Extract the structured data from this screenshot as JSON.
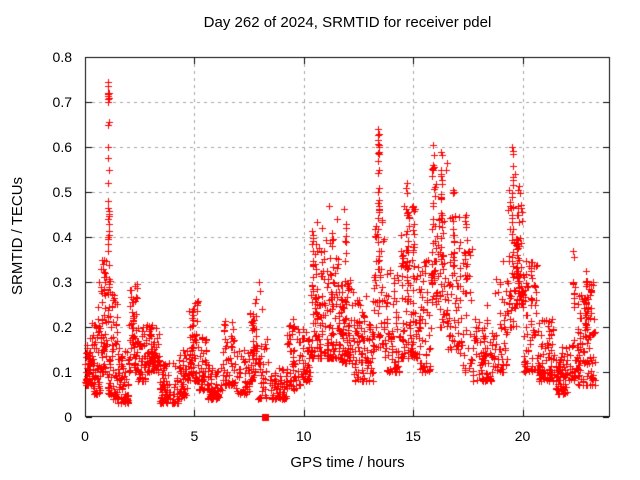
{
  "chart_data": {
    "type": "scatter",
    "title": "Day 262 of 2024, SRMTID for receiver pdel",
    "xlabel": "GPS time / hours",
    "ylabel": "SRMTID / TECUs",
    "xlim": [
      0,
      24
    ],
    "ylim": [
      0,
      0.8
    ],
    "xticks": [
      {
        "v": 0,
        "label": "0"
      },
      {
        "v": 5,
        "label": "5"
      },
      {
        "v": 10,
        "label": "10"
      },
      {
        "v": 15,
        "label": "15"
      },
      {
        "v": 20,
        "label": "20"
      }
    ],
    "yticks": [
      {
        "v": 0.0,
        "label": "0"
      },
      {
        "v": 0.1,
        "label": "0.1"
      },
      {
        "v": 0.2,
        "label": "0.2"
      },
      {
        "v": 0.3,
        "label": "0.3"
      },
      {
        "v": 0.4,
        "label": "0.4"
      },
      {
        "v": 0.5,
        "label": "0.5"
      },
      {
        "v": 0.6,
        "label": "0.6"
      },
      {
        "v": 0.7,
        "label": "0.7"
      },
      {
        "v": 0.8,
        "label": "0.8"
      }
    ],
    "grid": "dashed",
    "legend": "none",
    "marker": {
      "shape": "plus",
      "color": "#ff0000",
      "size": 7
    },
    "grid_color": "#a6a6a6",
    "axis_color": "#000000",
    "seed": 1337,
    "bands_format": [
      "t_start_h",
      "t_end_h",
      "tecu_min",
      "tecu_max",
      "n_points"
    ],
    "bands": [
      [
        0.0,
        0.4,
        0.07,
        0.19,
        60
      ],
      [
        0.3,
        0.7,
        0.05,
        0.25,
        50
      ],
      [
        0.7,
        1.0,
        0.1,
        0.35,
        55
      ],
      [
        1.0,
        1.2,
        0.05,
        0.3,
        25
      ],
      [
        1.2,
        1.5,
        0.04,
        0.28,
        45
      ],
      [
        1.5,
        2.0,
        0.03,
        0.16,
        60
      ],
      [
        2.0,
        2.4,
        0.1,
        0.31,
        50
      ],
      [
        2.4,
        2.8,
        0.08,
        0.2,
        45
      ],
      [
        2.8,
        3.4,
        0.1,
        0.21,
        70
      ],
      [
        3.4,
        4.3,
        0.03,
        0.12,
        80
      ],
      [
        4.3,
        4.7,
        0.04,
        0.15,
        45
      ],
      [
        4.7,
        5.2,
        0.08,
        0.26,
        60
      ],
      [
        5.2,
        5.6,
        0.06,
        0.18,
        40
      ],
      [
        5.6,
        6.3,
        0.04,
        0.12,
        60
      ],
      [
        6.3,
        6.9,
        0.07,
        0.22,
        55
      ],
      [
        6.9,
        7.5,
        0.05,
        0.15,
        45
      ],
      [
        7.5,
        7.9,
        0.08,
        0.27,
        40
      ],
      [
        7.9,
        8.4,
        0.04,
        0.2,
        35
      ],
      [
        8.4,
        9.2,
        0.04,
        0.11,
        55
      ],
      [
        9.2,
        9.9,
        0.06,
        0.22,
        55
      ],
      [
        9.9,
        10.3,
        0.08,
        0.2,
        40
      ],
      [
        10.3,
        11.0,
        0.13,
        0.38,
        70
      ],
      [
        11.0,
        11.7,
        0.13,
        0.4,
        80
      ],
      [
        11.7,
        12.3,
        0.12,
        0.33,
        70
      ],
      [
        12.3,
        13.2,
        0.08,
        0.27,
        90
      ],
      [
        13.2,
        13.7,
        0.15,
        0.45,
        50
      ],
      [
        13.7,
        14.4,
        0.1,
        0.33,
        70
      ],
      [
        14.4,
        15.2,
        0.13,
        0.47,
        90
      ],
      [
        15.2,
        15.8,
        0.1,
        0.35,
        60
      ],
      [
        15.8,
        16.1,
        0.25,
        0.57,
        35
      ],
      [
        16.1,
        16.6,
        0.2,
        0.55,
        45
      ],
      [
        16.6,
        17.1,
        0.15,
        0.5,
        45
      ],
      [
        17.1,
        17.7,
        0.1,
        0.4,
        45
      ],
      [
        17.7,
        18.6,
        0.08,
        0.22,
        70
      ],
      [
        18.6,
        19.3,
        0.1,
        0.35,
        55
      ],
      [
        19.3,
        19.7,
        0.2,
        0.55,
        40
      ],
      [
        19.7,
        20.0,
        0.25,
        0.5,
        45
      ],
      [
        20.0,
        20.7,
        0.1,
        0.35,
        70
      ],
      [
        20.7,
        21.5,
        0.08,
        0.22,
        80
      ],
      [
        21.5,
        22.1,
        0.05,
        0.16,
        70
      ],
      [
        22.1,
        22.5,
        0.08,
        0.2,
        25
      ],
      [
        22.5,
        23.3,
        0.07,
        0.31,
        110
      ]
    ],
    "columns_format": [
      "t_center_h",
      "tecu_min",
      "tecu_max",
      "n_points"
    ],
    "columns": [
      [
        1.08,
        0.2,
        0.46,
        14
      ],
      [
        2.15,
        0.15,
        0.31,
        10
      ],
      [
        4.9,
        0.12,
        0.26,
        12
      ],
      [
        7.7,
        0.12,
        0.3,
        10
      ],
      [
        9.5,
        0.1,
        0.22,
        8
      ],
      [
        10.4,
        0.2,
        0.465,
        16
      ],
      [
        10.55,
        0.18,
        0.45,
        12
      ],
      [
        11.3,
        0.18,
        0.42,
        12
      ],
      [
        11.9,
        0.2,
        0.47,
        12
      ],
      [
        13.42,
        0.3,
        0.64,
        18
      ],
      [
        14.75,
        0.25,
        0.52,
        16
      ],
      [
        15.0,
        0.3,
        0.47,
        14
      ],
      [
        15.9,
        0.3,
        0.605,
        14
      ],
      [
        16.3,
        0.3,
        0.59,
        16
      ],
      [
        16.85,
        0.28,
        0.52,
        12
      ],
      [
        17.4,
        0.25,
        0.45,
        10
      ],
      [
        19.55,
        0.3,
        0.6,
        14
      ],
      [
        19.8,
        0.28,
        0.52,
        16
      ],
      [
        20.4,
        0.2,
        0.35,
        8
      ],
      [
        22.35,
        0.24,
        0.37,
        10
      ],
      [
        22.9,
        0.15,
        0.33,
        12
      ]
    ],
    "outliers_format": [
      "t_h",
      "tecu"
    ],
    "outliers": [
      [
        1.05,
        0.745
      ],
      [
        1.07,
        0.735
      ],
      [
        1.06,
        0.72
      ],
      [
        1.08,
        0.72
      ],
      [
        1.07,
        0.717
      ],
      [
        1.05,
        0.713
      ],
      [
        1.08,
        0.71
      ],
      [
        1.06,
        0.706
      ],
      [
        1.07,
        0.7
      ],
      [
        1.08,
        0.655
      ],
      [
        1.05,
        0.648
      ],
      [
        1.07,
        0.6
      ],
      [
        1.06,
        0.575
      ],
      [
        1.08,
        0.55
      ],
      [
        1.06,
        0.52
      ],
      [
        1.05,
        0.48
      ],
      [
        1.07,
        0.465
      ],
      [
        1.08,
        0.452
      ],
      [
        1.06,
        0.44
      ],
      [
        1.09,
        0.43
      ],
      [
        1.07,
        0.4
      ],
      [
        1.05,
        0.37
      ],
      [
        0.62,
        0.3
      ],
      [
        0.75,
        0.33
      ],
      [
        0.85,
        0.35
      ],
      [
        0.92,
        0.32
      ],
      [
        13.4,
        0.64
      ],
      [
        13.43,
        0.63
      ],
      [
        13.41,
        0.615
      ],
      [
        13.44,
        0.6
      ],
      [
        13.42,
        0.585
      ],
      [
        13.4,
        0.57
      ],
      [
        13.43,
        0.55
      ],
      [
        13.41,
        0.5
      ],
      [
        13.44,
        0.47
      ],
      [
        13.42,
        0.455
      ],
      [
        15.92,
        0.605
      ],
      [
        16.28,
        0.59
      ],
      [
        16.33,
        0.582
      ],
      [
        16.55,
        0.565
      ],
      [
        16.5,
        0.55
      ],
      [
        19.52,
        0.6
      ],
      [
        19.57,
        0.585
      ],
      [
        14.7,
        0.52
      ],
      [
        14.66,
        0.508
      ],
      [
        11.15,
        0.47
      ],
      [
        11.5,
        0.44
      ],
      [
        10.85,
        0.42
      ],
      [
        7.95,
        0.3
      ],
      [
        8.02,
        0.28
      ],
      [
        8.07,
        0.24
      ],
      [
        18.4,
        0.25
      ],
      [
        22.33,
        0.37
      ],
      [
        20.42,
        0.345
      ]
    ],
    "special_points": [
      {
        "x": 8.25,
        "y": 0,
        "marker": "filled-square",
        "color": "#ff0000"
      }
    ]
  }
}
